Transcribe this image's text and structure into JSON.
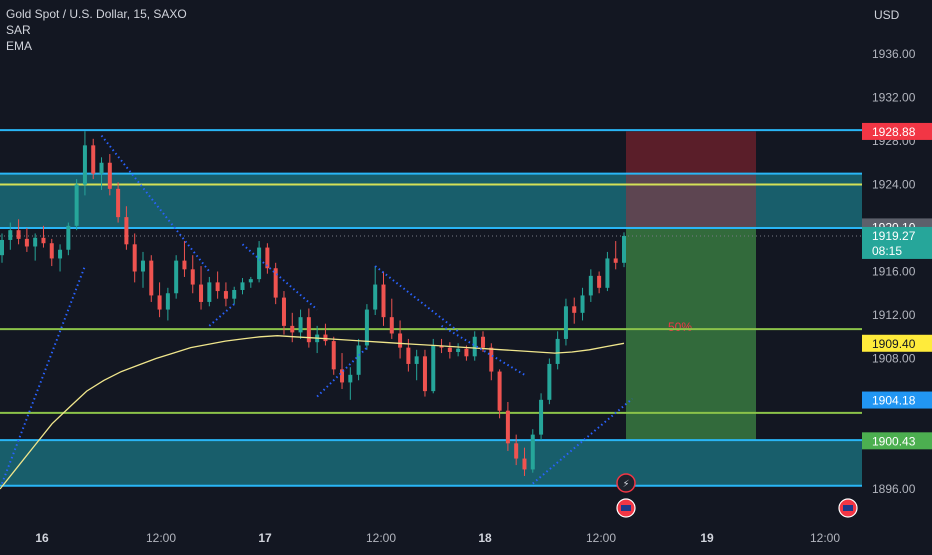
{
  "header": {
    "title": "Gold Spot / U.S. Dollar, 15, SAXO",
    "indicators": [
      "SAR",
      "EMA"
    ],
    "currency": "USD"
  },
  "chart_data": {
    "type": "candlestick",
    "symbol": "Gold Spot / U.S. Dollar",
    "interval": "15",
    "source": "SAXO",
    "price_axis": {
      "ticks": [
        "1936.00",
        "1932.00",
        "1928.00",
        "1924.00",
        "1916.00",
        "1912.00",
        "1908.00",
        "1896.00"
      ],
      "ylim": [
        1895.5,
        1937.5
      ]
    },
    "time_axis": {
      "ticks": [
        "16",
        "12:00",
        "17",
        "12:00",
        "18",
        "12:00",
        "19",
        "12:00"
      ]
    },
    "price_labels": [
      {
        "text": "1928.88",
        "value": 1928.88,
        "color": "#f23645"
      },
      {
        "text": "1920.10",
        "value": 1920.1,
        "color": "#5d606b"
      },
      {
        "text": "1919.27",
        "value": 1919.27,
        "color": "#26a69a",
        "sub": "08:15"
      },
      {
        "text": "1909.40",
        "value": 1909.4,
        "color": "#ffeb3b"
      },
      {
        "text": "1904.18",
        "value": 1904.18,
        "color": "#2196f3"
      },
      {
        "text": "1900.43",
        "value": 1900.43,
        "color": "#4caf50"
      }
    ],
    "horizontal_levels": [
      {
        "value": 1929.0,
        "color": "#29b6f6"
      },
      {
        "value": 1925.0,
        "color": "#29b6f6"
      },
      {
        "value": 1924.0,
        "color": "#d4e157"
      },
      {
        "value": 1920.0,
        "color": "#29b6f6"
      },
      {
        "value": 1910.7,
        "color": "#8bc34a"
      },
      {
        "value": 1903.0,
        "color": "#8bc34a"
      },
      {
        "value": 1900.5,
        "color": "#29b6f6"
      },
      {
        "value": 1896.3,
        "color": "#29b6f6"
      }
    ],
    "zones": [
      {
        "from": 1920.0,
        "to": 1925.0,
        "color": "#1a6b78"
      },
      {
        "from": 1896.3,
        "to": 1900.5,
        "color": "#1a6b78"
      }
    ],
    "position": {
      "entry": 1920.1,
      "stop": 1928.88,
      "target": 1900.43,
      "label": "50%"
    },
    "current_price": 1919.27,
    "candles_description": "approx. OHLC sequence (data units)",
    "candles": [
      [
        1917.5,
        1919.5,
        1916.8,
        1918.9
      ],
      [
        1918.9,
        1920.5,
        1918.0,
        1919.8
      ],
      [
        1919.8,
        1920.8,
        1918.5,
        1919.0
      ],
      [
        1919.0,
        1920.0,
        1917.8,
        1918.3
      ],
      [
        1918.3,
        1919.5,
        1917.0,
        1919.1
      ],
      [
        1919.1,
        1920.2,
        1918.2,
        1918.6
      ],
      [
        1918.6,
        1919.0,
        1916.5,
        1917.2
      ],
      [
        1917.2,
        1918.5,
        1916.0,
        1918.0
      ],
      [
        1918.0,
        1920.5,
        1917.5,
        1920.2
      ],
      [
        1920.2,
        1924.5,
        1919.8,
        1924.0
      ],
      [
        1924.0,
        1928.9,
        1923.0,
        1927.6
      ],
      [
        1927.6,
        1928.2,
        1924.5,
        1925.0
      ],
      [
        1925.0,
        1926.5,
        1923.5,
        1926.0
      ],
      [
        1926.0,
        1926.8,
        1923.0,
        1923.6
      ],
      [
        1923.6,
        1924.2,
        1920.5,
        1921.0
      ],
      [
        1921.0,
        1922.0,
        1918.0,
        1918.5
      ],
      [
        1918.5,
        1919.5,
        1915.0,
        1916.0
      ],
      [
        1916.0,
        1917.8,
        1914.5,
        1917.0
      ],
      [
        1917.0,
        1917.5,
        1913.2,
        1913.8
      ],
      [
        1913.8,
        1915.0,
        1911.8,
        1912.5
      ],
      [
        1912.5,
        1914.5,
        1911.5,
        1914.0
      ],
      [
        1914.0,
        1917.5,
        1913.5,
        1917.0
      ],
      [
        1917.0,
        1918.8,
        1915.5,
        1916.2
      ],
      [
        1916.2,
        1917.5,
        1914.0,
        1914.8
      ],
      [
        1914.8,
        1916.5,
        1912.5,
        1913.2
      ],
      [
        1913.2,
        1915.5,
        1912.8,
        1915.0
      ],
      [
        1915.0,
        1916.0,
        1913.5,
        1914.2
      ],
      [
        1914.2,
        1915.0,
        1912.8,
        1913.5
      ],
      [
        1913.5,
        1914.6,
        1913.0,
        1914.3
      ],
      [
        1914.3,
        1915.4,
        1913.9,
        1915.0
      ],
      [
        1915.0,
        1915.5,
        1914.5,
        1915.3
      ],
      [
        1915.3,
        1918.8,
        1915.0,
        1918.2
      ],
      [
        1918.2,
        1918.6,
        1915.8,
        1916.3
      ],
      [
        1916.3,
        1916.8,
        1913.0,
        1913.6
      ],
      [
        1913.6,
        1914.2,
        1910.2,
        1911.0
      ],
      [
        1911.0,
        1912.2,
        1909.5,
        1910.4
      ],
      [
        1910.4,
        1912.5,
        1909.8,
        1911.8
      ],
      [
        1911.8,
        1912.6,
        1909.0,
        1909.5
      ],
      [
        1909.5,
        1911.0,
        1908.5,
        1910.2
      ],
      [
        1910.2,
        1911.2,
        1909.2,
        1909.6
      ],
      [
        1909.6,
        1910.0,
        1906.5,
        1907.0
      ],
      [
        1907.0,
        1908.5,
        1905.2,
        1905.8
      ],
      [
        1905.8,
        1907.2,
        1904.2,
        1906.5
      ],
      [
        1906.5,
        1909.8,
        1906.0,
        1909.2
      ],
      [
        1909.2,
        1913.0,
        1908.8,
        1912.5
      ],
      [
        1912.5,
        1916.5,
        1912.0,
        1914.8
      ],
      [
        1914.8,
        1916.0,
        1911.0,
        1911.8
      ],
      [
        1911.8,
        1913.5,
        1909.8,
        1910.3
      ],
      [
        1910.3,
        1911.5,
        1908.0,
        1909.0
      ],
      [
        1909.0,
        1909.8,
        1906.8,
        1907.5
      ],
      [
        1907.5,
        1908.8,
        1906.0,
        1908.2
      ],
      [
        1908.2,
        1908.8,
        1904.5,
        1905.0
      ],
      [
        1905.0,
        1909.8,
        1904.8,
        1909.2
      ],
      [
        1909.2,
        1909.8,
        1908.5,
        1909.0
      ],
      [
        1909.0,
        1909.5,
        1908.0,
        1908.6
      ],
      [
        1908.6,
        1909.4,
        1908.2,
        1908.9
      ],
      [
        1908.9,
        1909.2,
        1907.8,
        1908.2
      ],
      [
        1908.2,
        1910.5,
        1907.8,
        1910.0
      ],
      [
        1910.0,
        1910.5,
        1908.6,
        1909.0
      ],
      [
        1909.0,
        1909.4,
        1906.0,
        1906.8
      ],
      [
        1906.8,
        1907.0,
        1902.5,
        1903.2
      ],
      [
        1903.2,
        1904.0,
        1899.5,
        1900.2
      ],
      [
        1900.2,
        1901.0,
        1898.2,
        1898.8
      ],
      [
        1898.8,
        1899.8,
        1897.2,
        1897.8
      ],
      [
        1897.8,
        1901.5,
        1897.5,
        1901.0
      ],
      [
        1901.0,
        1904.8,
        1900.5,
        1904.2
      ],
      [
        1904.2,
        1908.0,
        1903.8,
        1907.5
      ],
      [
        1907.5,
        1910.5,
        1907.0,
        1909.8
      ],
      [
        1909.8,
        1913.5,
        1909.2,
        1912.8
      ],
      [
        1912.8,
        1913.6,
        1911.2,
        1912.2
      ],
      [
        1912.2,
        1914.5,
        1911.5,
        1913.8
      ],
      [
        1913.8,
        1916.2,
        1913.2,
        1915.6
      ],
      [
        1915.6,
        1916.0,
        1914.0,
        1914.5
      ],
      [
        1914.5,
        1917.8,
        1914.2,
        1917.2
      ],
      [
        1917.2,
        1918.8,
        1916.2,
        1916.8
      ],
      [
        1916.8,
        1919.6,
        1916.4,
        1919.27
      ]
    ],
    "ema": [
      1896,
      1898,
      1900,
      1902,
      1903.5,
      1905,
      1906,
      1906.8,
      1907.4,
      1908,
      1908.5,
      1909,
      1909.3,
      1909.6,
      1909.8,
      1910.0,
      1910.1,
      1910.0,
      1909.9,
      1909.8,
      1909.7,
      1909.6,
      1909.5,
      1909.4,
      1909.3,
      1909.2,
      1909.1,
      1909.0,
      1908.9,
      1908.8,
      1908.7,
      1908.6,
      1908.5,
      1908.6,
      1908.8,
      1909.1,
      1909.4
    ],
    "sar_segments": [
      {
        "from": [
          0,
          1896.5
        ],
        "to": [
          10,
          1916.5
        ]
      },
      {
        "from": [
          12,
          1928.5
        ],
        "to": [
          25,
          1916.0
        ]
      },
      {
        "from": [
          25,
          1911.0
        ],
        "to": [
          28,
          1913.0
        ]
      },
      {
        "from": [
          29,
          1918.5
        ],
        "to": [
          38,
          1912.5
        ]
      },
      {
        "from": [
          38,
          1904.5
        ],
        "to": [
          44,
          1909.0
        ]
      },
      {
        "from": [
          45,
          1916.5
        ],
        "to": [
          55,
          1910.5
        ]
      },
      {
        "from": [
          53,
          1911.0
        ],
        "to": [
          63,
          1906.5
        ]
      },
      {
        "from": [
          64,
          1896.5
        ],
        "to": [
          76,
          1904.3
        ]
      }
    ],
    "event_icons": [
      "lightning-icon",
      "us-flag-icon",
      "us-flag-icon"
    ]
  }
}
